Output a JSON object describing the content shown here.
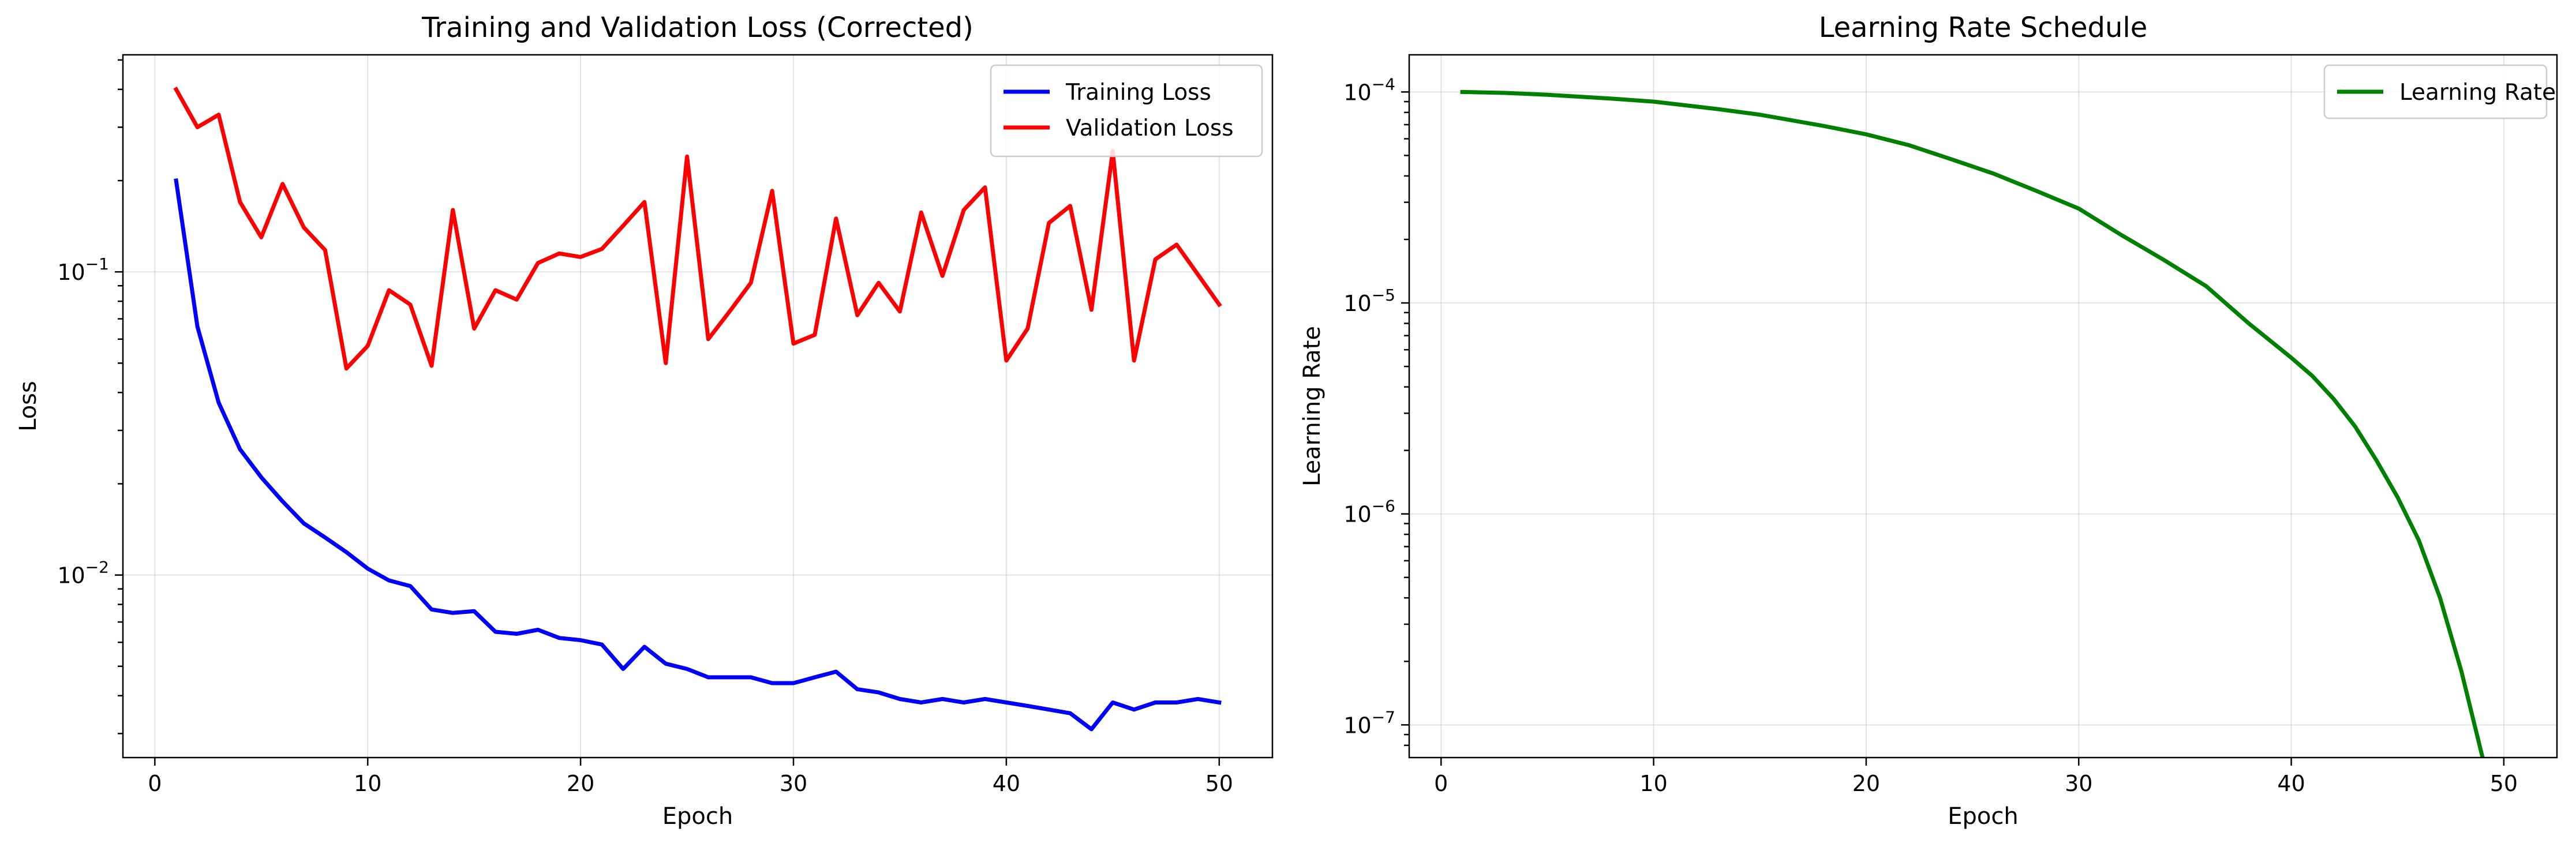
{
  "chart_data": [
    {
      "type": "line",
      "title": "Training and Validation Loss (Corrected)",
      "xlabel": "Epoch",
      "ylabel": "Loss",
      "yscale": "log",
      "xlim": [
        -1.5,
        52.5
      ],
      "ylim": [
        0.0025,
        0.52
      ],
      "x_ticks": [
        0,
        10,
        20,
        30,
        40,
        50
      ],
      "y_ticks": [
        {
          "value": 0.01,
          "base": "10",
          "exp": "−2"
        },
        {
          "value": 0.1,
          "base": "10",
          "exp": "−1"
        }
      ],
      "grid": true,
      "legend_placement": "top-right",
      "x": [
        1,
        2,
        3,
        4,
        5,
        6,
        7,
        8,
        9,
        10,
        11,
        12,
        13,
        14,
        15,
        16,
        17,
        18,
        19,
        20,
        21,
        22,
        23,
        24,
        25,
        26,
        27,
        28,
        29,
        30,
        31,
        32,
        33,
        34,
        35,
        36,
        37,
        38,
        39,
        40,
        41,
        42,
        43,
        44,
        45,
        46,
        47,
        48,
        49,
        50
      ],
      "series": [
        {
          "name": "Training Loss",
          "color": "#0000ff",
          "values": [
            0.2,
            0.066,
            0.037,
            0.026,
            0.021,
            0.0175,
            0.0148,
            0.0133,
            0.0119,
            0.0105,
            0.0096,
            0.0092,
            0.0077,
            0.0075,
            0.0076,
            0.0065,
            0.0064,
            0.0066,
            0.0062,
            0.0061,
            0.0059,
            0.0049,
            0.0058,
            0.0051,
            0.0049,
            0.0046,
            0.0046,
            0.0046,
            0.0044,
            0.0044,
            0.0046,
            0.0048,
            0.0042,
            0.0041,
            0.0039,
            0.0038,
            0.0039,
            0.0038,
            0.0039,
            0.0038,
            0.0037,
            0.0036,
            0.0035,
            0.0031,
            0.0038,
            0.0036,
            0.0038,
            0.0038,
            0.0039,
            0.0038
          ]
        },
        {
          "name": "Validation Loss",
          "color": "#ff0000",
          "values": [
            0.4,
            0.3,
            0.33,
            0.17,
            0.13,
            0.195,
            0.14,
            0.118,
            0.048,
            0.057,
            0.087,
            0.078,
            0.049,
            0.16,
            0.065,
            0.087,
            0.081,
            0.107,
            0.115,
            0.112,
            0.119,
            0.142,
            0.17,
            0.05,
            0.24,
            0.06,
            0.074,
            0.092,
            0.185,
            0.058,
            0.062,
            0.15,
            0.072,
            0.092,
            0.074,
            0.157,
            0.097,
            0.16,
            0.19,
            0.051,
            0.065,
            0.145,
            0.165,
            0.075,
            0.25,
            0.051,
            0.11,
            0.123,
            0.098,
            0.078
          ]
        }
      ]
    },
    {
      "type": "line",
      "title": "Learning Rate Schedule",
      "xlabel": "Epoch",
      "ylabel": "Learning Rate",
      "yscale": "log",
      "xlim": [
        -1.5,
        52.5
      ],
      "ylim": [
        7e-08,
        0.00015
      ],
      "x_ticks": [
        0,
        10,
        20,
        30,
        40,
        50
      ],
      "y_ticks": [
        {
          "value": 1e-07,
          "base": "10",
          "exp": "−7"
        },
        {
          "value": 1e-06,
          "base": "10",
          "exp": "−6"
        },
        {
          "value": 1e-05,
          "base": "10",
          "exp": "−5"
        },
        {
          "value": 0.0001,
          "base": "10",
          "exp": "−4"
        }
      ],
      "grid": true,
      "legend_placement": "top-right",
      "x": [
        1,
        3,
        5,
        8,
        10,
        13,
        15,
        18,
        20,
        22,
        24,
        26,
        28,
        30,
        32,
        34,
        36,
        38,
        40,
        41,
        42,
        43,
        44,
        45,
        46,
        47,
        48,
        49
      ],
      "series": [
        {
          "name": "Learning Rate",
          "color": "#008000",
          "values": [
            0.0001,
            9.9e-05,
            9.7e-05,
            9.3e-05,
            9e-05,
            8.3e-05,
            7.8e-05,
            6.9e-05,
            6.3e-05,
            5.6e-05,
            4.8e-05,
            4.1e-05,
            3.4e-05,
            2.8e-05,
            2.1e-05,
            1.6e-05,
            1.2e-05,
            8e-06,
            5.5e-06,
            4.5e-06,
            3.5e-06,
            2.6e-06,
            1.8e-06,
            1.2e-06,
            7.5e-07,
            4e-07,
            1.8e-07,
            7e-08
          ]
        }
      ]
    }
  ]
}
